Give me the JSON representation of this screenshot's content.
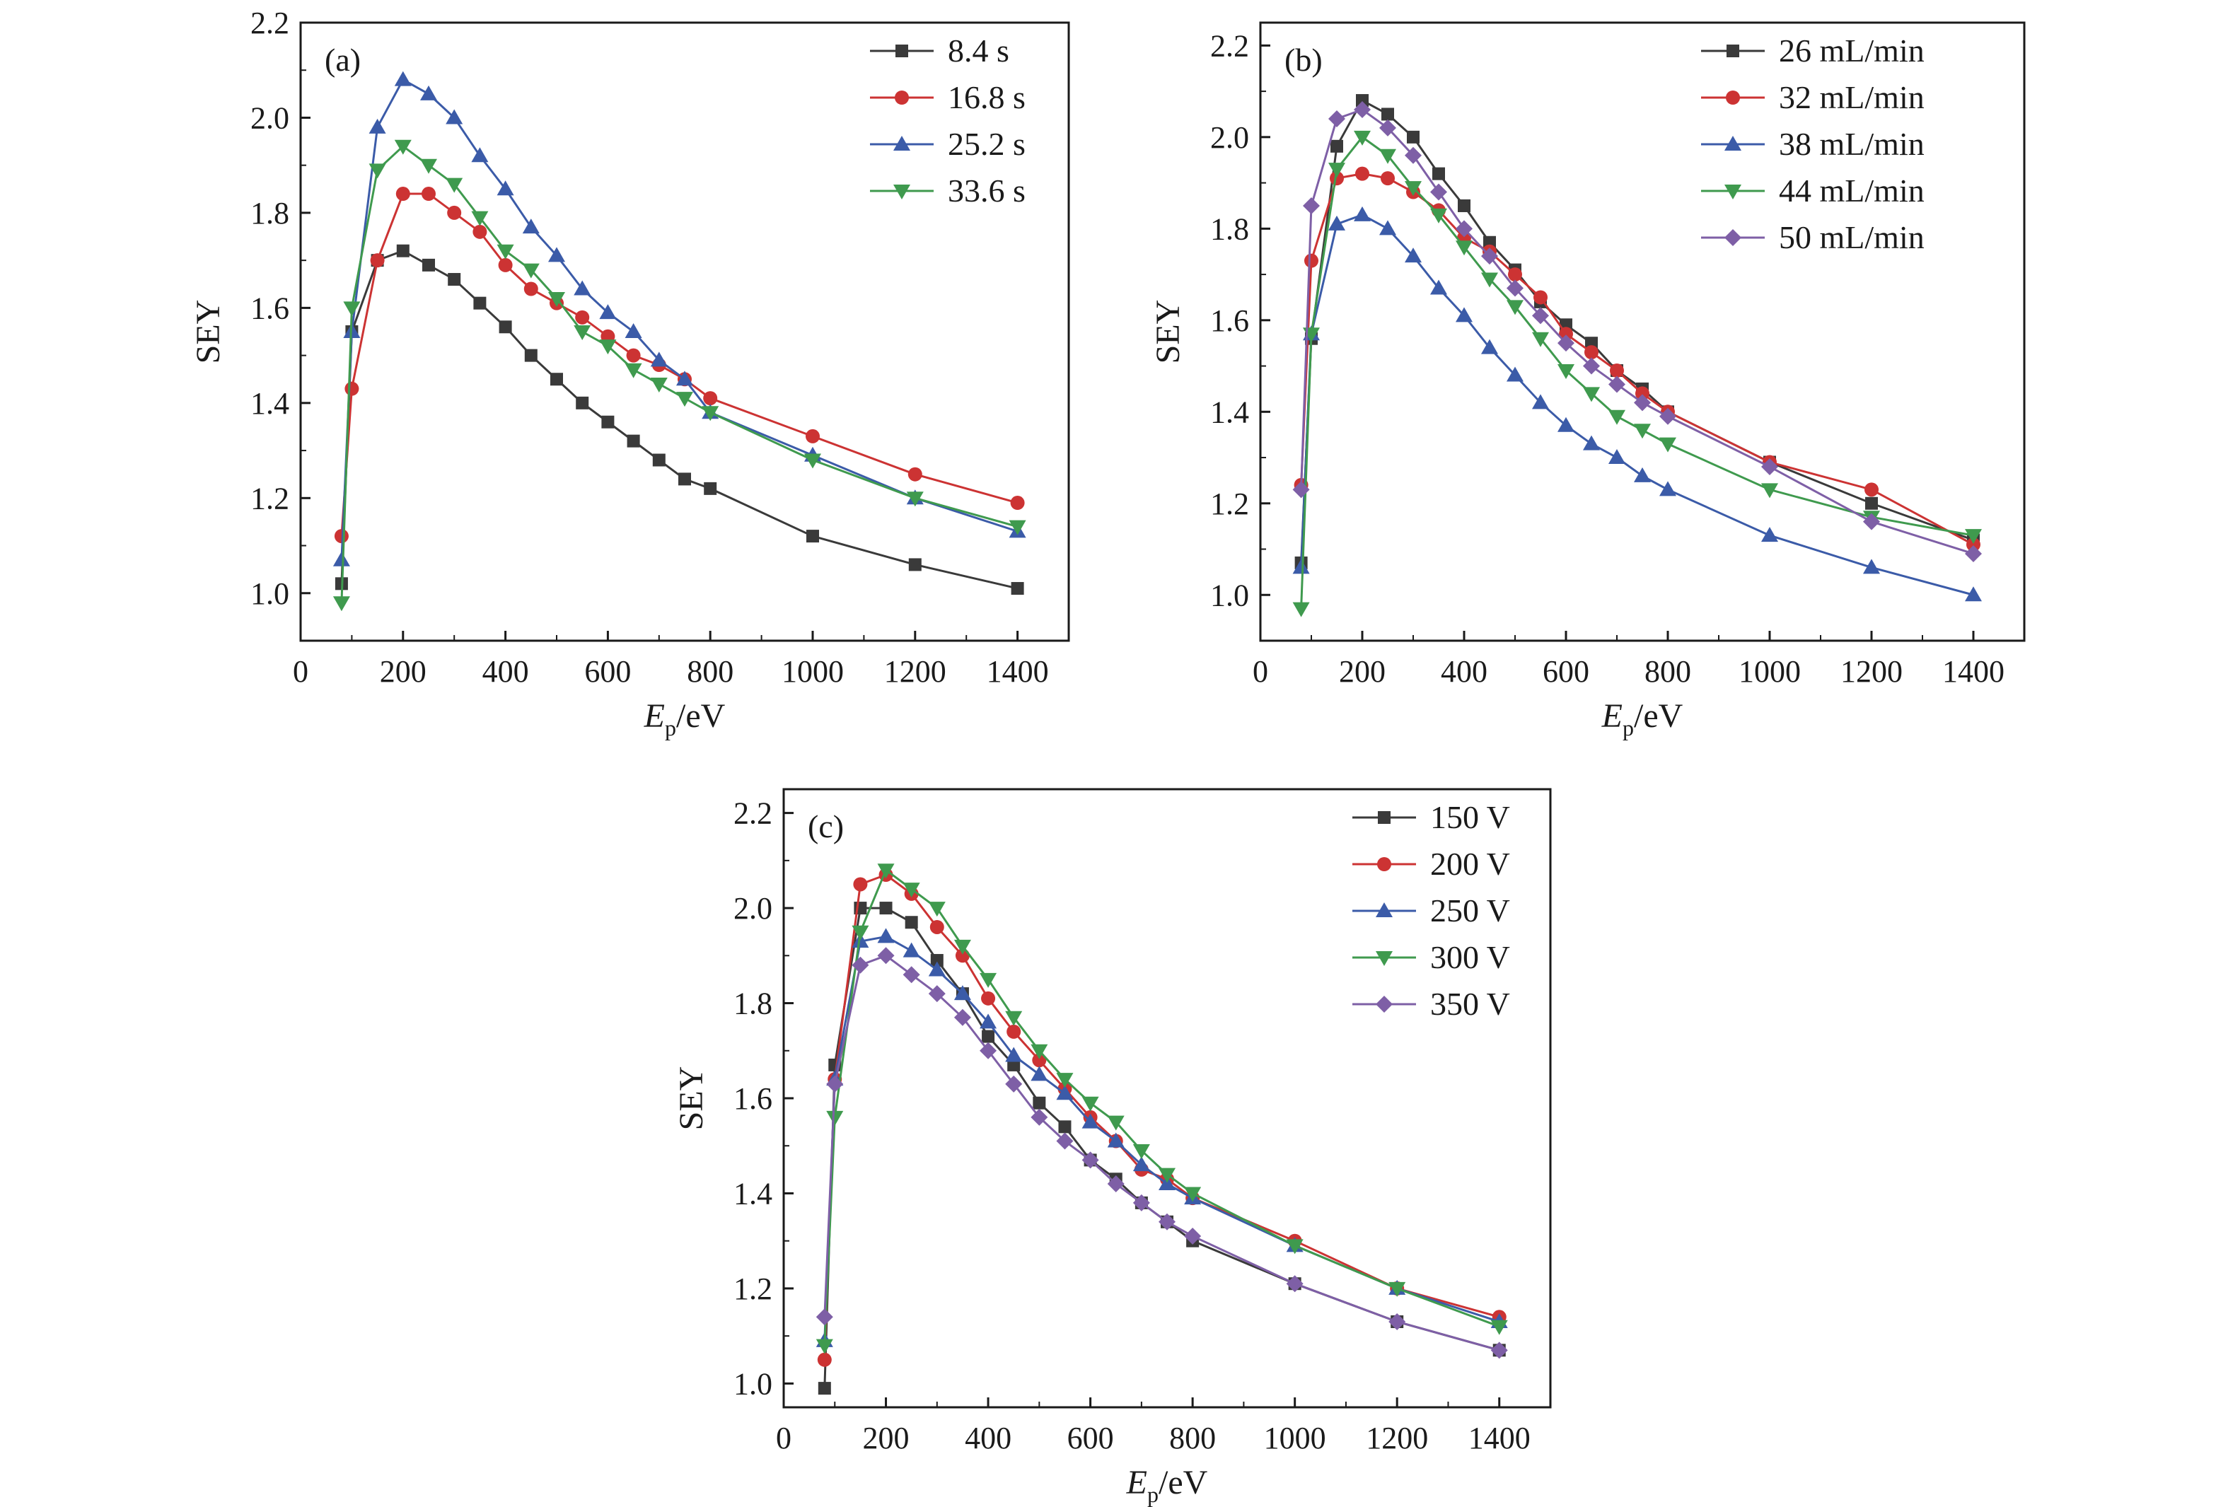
{
  "chart_data": [
    {
      "type": "line",
      "panel_label": "(a)",
      "ylabel": "SEY",
      "xlabel_main": "E",
      "xlabel_sub": "p",
      "xlabel_rest": "/eV",
      "xlim": [
        0,
        1500
      ],
      "ylim": [
        0.9,
        2.2
      ],
      "xticks": [
        0,
        200,
        400,
        600,
        800,
        1000,
        1200,
        1400
      ],
      "yticks": [
        1.0,
        1.2,
        1.4,
        1.6,
        1.8,
        2.0,
        2.2
      ],
      "x": [
        80,
        100,
        150,
        200,
        250,
        300,
        350,
        400,
        450,
        500,
        550,
        600,
        650,
        700,
        750,
        800,
        1000,
        1200,
        1400
      ],
      "legend_position": "top-right",
      "series": [
        {
          "name": "8.4 s",
          "color": "#3a3a3a",
          "marker": "square",
          "values": [
            1.02,
            1.55,
            1.7,
            1.72,
            1.69,
            1.66,
            1.61,
            1.56,
            1.5,
            1.45,
            1.4,
            1.36,
            1.32,
            1.28,
            1.24,
            1.22,
            1.12,
            1.06,
            1.01
          ]
        },
        {
          "name": "16.8 s",
          "color": "#cc3333",
          "marker": "circle",
          "values": [
            1.12,
            1.43,
            1.7,
            1.84,
            1.84,
            1.8,
            1.76,
            1.69,
            1.64,
            1.61,
            1.58,
            1.54,
            1.5,
            1.48,
            1.45,
            1.41,
            1.33,
            1.25,
            1.19
          ]
        },
        {
          "name": "25.2 s",
          "color": "#3b5ba8",
          "marker": "triangle-up",
          "values": [
            1.07,
            1.55,
            1.98,
            2.08,
            2.05,
            2.0,
            1.92,
            1.85,
            1.77,
            1.71,
            1.64,
            1.59,
            1.55,
            1.49,
            1.45,
            1.38,
            1.29,
            1.2,
            1.13
          ]
        },
        {
          "name": "33.6 s",
          "color": "#3f9a4e",
          "marker": "triangle-down",
          "values": [
            0.98,
            1.6,
            1.89,
            1.94,
            1.9,
            1.86,
            1.79,
            1.72,
            1.68,
            1.62,
            1.55,
            1.52,
            1.47,
            1.44,
            1.41,
            1.38,
            1.28,
            1.2,
            1.14
          ]
        }
      ]
    },
    {
      "type": "line",
      "panel_label": "(b)",
      "ylabel": "SEY",
      "xlabel_main": "E",
      "xlabel_sub": "p",
      "xlabel_rest": "/eV",
      "xlim": [
        0,
        1500
      ],
      "ylim": [
        0.9,
        2.25
      ],
      "xticks": [
        0,
        200,
        400,
        600,
        800,
        1000,
        1200,
        1400
      ],
      "yticks": [
        1.0,
        1.2,
        1.4,
        1.6,
        1.8,
        2.0,
        2.2
      ],
      "x": [
        80,
        100,
        150,
        200,
        250,
        300,
        350,
        400,
        450,
        500,
        550,
        600,
        650,
        700,
        750,
        800,
        1000,
        1200,
        1400
      ],
      "legend_position": "top-right",
      "series": [
        {
          "name": "26 mL/min",
          "color": "#3a3a3a",
          "marker": "square",
          "values": [
            1.07,
            1.56,
            1.98,
            2.08,
            2.05,
            2.0,
            1.92,
            1.85,
            1.77,
            1.71,
            1.64,
            1.59,
            1.55,
            1.49,
            1.45,
            1.4,
            1.29,
            1.2,
            1.12
          ]
        },
        {
          "name": "32 mL/min",
          "color": "#cc3333",
          "marker": "circle",
          "values": [
            1.24,
            1.73,
            1.91,
            1.92,
            1.91,
            1.88,
            1.84,
            1.78,
            1.75,
            1.7,
            1.65,
            1.57,
            1.53,
            1.49,
            1.44,
            1.4,
            1.29,
            1.23,
            1.11
          ]
        },
        {
          "name": "38 mL/min",
          "color": "#3b5ba8",
          "marker": "triangle-up",
          "values": [
            1.06,
            1.57,
            1.81,
            1.83,
            1.8,
            1.74,
            1.67,
            1.61,
            1.54,
            1.48,
            1.42,
            1.37,
            1.33,
            1.3,
            1.26,
            1.23,
            1.13,
            1.06,
            1.0
          ]
        },
        {
          "name": "44 mL/min",
          "color": "#3f9a4e",
          "marker": "triangle-down",
          "values": [
            0.97,
            1.57,
            1.93,
            2.0,
            1.96,
            1.89,
            1.83,
            1.76,
            1.69,
            1.63,
            1.56,
            1.49,
            1.44,
            1.39,
            1.36,
            1.33,
            1.23,
            1.17,
            1.13
          ]
        },
        {
          "name": "50 mL/min",
          "color": "#7e5fa6",
          "marker": "diamond",
          "values": [
            1.23,
            1.85,
            2.04,
            2.06,
            2.02,
            1.96,
            1.88,
            1.8,
            1.74,
            1.67,
            1.61,
            1.55,
            1.5,
            1.46,
            1.42,
            1.39,
            1.28,
            1.16,
            1.09
          ]
        }
      ]
    },
    {
      "type": "line",
      "panel_label": "(c)",
      "ylabel": "SEY",
      "xlabel_main": "E",
      "xlabel_sub": "p",
      "xlabel_rest": "/eV",
      "xlim": [
        0,
        1500
      ],
      "ylim": [
        0.95,
        2.25
      ],
      "xticks": [
        0,
        200,
        400,
        600,
        800,
        1000,
        1200,
        1400
      ],
      "yticks": [
        1.0,
        1.2,
        1.4,
        1.6,
        1.8,
        2.0,
        2.2
      ],
      "x": [
        80,
        100,
        150,
        200,
        250,
        300,
        350,
        400,
        450,
        500,
        550,
        600,
        650,
        700,
        750,
        800,
        1000,
        1200,
        1400
      ],
      "legend_position": "top-right",
      "series": [
        {
          "name": "150 V",
          "color": "#3a3a3a",
          "marker": "square",
          "values": [
            0.99,
            1.67,
            2.0,
            2.0,
            1.97,
            1.89,
            1.82,
            1.73,
            1.67,
            1.59,
            1.54,
            1.47,
            1.43,
            1.38,
            1.34,
            1.3,
            1.21,
            1.13,
            1.07
          ]
        },
        {
          "name": "200 V",
          "color": "#cc3333",
          "marker": "circle",
          "values": [
            1.05,
            1.64,
            2.05,
            2.07,
            2.03,
            1.96,
            1.9,
            1.81,
            1.74,
            1.68,
            1.62,
            1.56,
            1.51,
            1.45,
            1.43,
            1.39,
            1.3,
            1.2,
            1.14
          ]
        },
        {
          "name": "250 V",
          "color": "#3b5ba8",
          "marker": "triangle-up",
          "values": [
            1.09,
            1.64,
            1.93,
            1.94,
            1.91,
            1.87,
            1.82,
            1.76,
            1.69,
            1.65,
            1.61,
            1.55,
            1.51,
            1.46,
            1.42,
            1.39,
            1.29,
            1.2,
            1.13
          ]
        },
        {
          "name": "300 V",
          "color": "#3f9a4e",
          "marker": "triangle-down",
          "values": [
            1.08,
            1.56,
            1.95,
            2.08,
            2.04,
            2.0,
            1.92,
            1.85,
            1.77,
            1.7,
            1.64,
            1.59,
            1.55,
            1.49,
            1.44,
            1.4,
            1.29,
            1.2,
            1.12
          ]
        },
        {
          "name": "350 V",
          "color": "#7e5fa6",
          "marker": "diamond",
          "values": [
            1.14,
            1.63,
            1.88,
            1.9,
            1.86,
            1.82,
            1.77,
            1.7,
            1.63,
            1.56,
            1.51,
            1.47,
            1.42,
            1.38,
            1.34,
            1.31,
            1.21,
            1.13,
            1.07
          ]
        }
      ]
    }
  ]
}
